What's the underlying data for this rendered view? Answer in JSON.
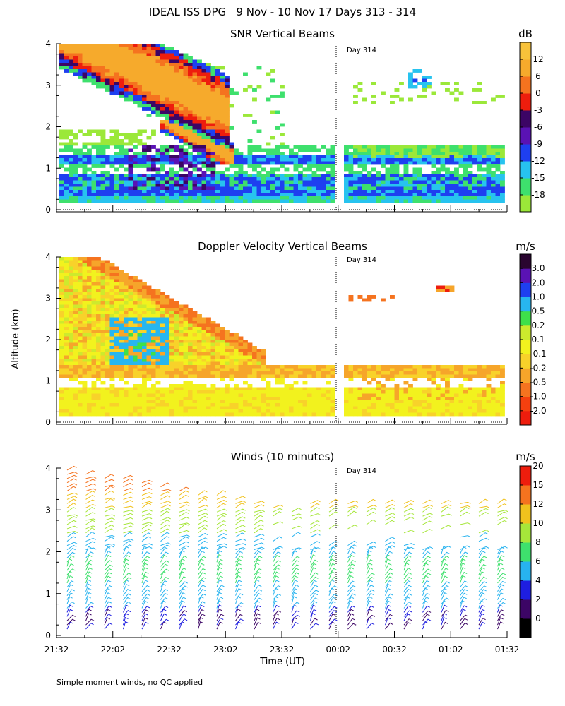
{
  "figure": {
    "title": "IDEAL ISS DPG   9 Nov - 10 Nov 17 Days 313 - 314",
    "ylabel": "Altitude (km)",
    "xlabel": "Time (UT)",
    "footnote": "Simple moment winds, no QC applied",
    "day_marker": "Day 314"
  },
  "chart_data": [
    {
      "type": "heatmap",
      "title": "SNR Vertical Beams",
      "colorbar_unit": "dB",
      "colorbar_ticks": [
        "-18",
        "-15",
        "-12",
        "-9",
        "-6",
        "-3",
        "0",
        "6",
        "12"
      ],
      "colors": [
        "#9be839",
        "#3ee06d",
        "#27c3ef",
        "#1e3ff0",
        "#5a12b4",
        "#3c0565",
        "#ee1d0d",
        "#f5731f",
        "#f6aa2c",
        "#f8c23a"
      ],
      "yticks": [
        "0",
        "1",
        "2",
        "3",
        "4"
      ],
      "ylim": [
        0,
        4
      ],
      "xticks": [
        "21:32",
        "22:02",
        "22:32",
        "23:02",
        "23:32",
        "00:02",
        "00:32",
        "01:02",
        "01:32"
      ],
      "day_marker_time": "00:00"
    },
    {
      "type": "heatmap",
      "title": "Doppler Velocity Vertical Beams",
      "colorbar_unit": "m/s",
      "colorbar_ticks": [
        "-2.0",
        "-1.0",
        "-0.5",
        "-0.2",
        "-0.1",
        "0.1",
        "0.2",
        "0.5",
        "1.0",
        "2.0",
        "3.0"
      ],
      "colors": [
        "#ee1d0d",
        "#f5400f",
        "#f5731f",
        "#f6a52a",
        "#f8d22a",
        "#f2f21e",
        "#cdea2d",
        "#3ee04a",
        "#27b6ef",
        "#1e3ff0",
        "#5a12b4",
        "#2a0530"
      ],
      "yticks": [
        "0",
        "1",
        "2",
        "3",
        "4"
      ],
      "ylim": [
        0,
        4
      ]
    },
    {
      "type": "scatter",
      "title": "Winds (10 minutes)",
      "colorbar_unit": "m/s",
      "colorbar_ticks": [
        "0",
        "2",
        "4",
        "6",
        "8",
        "10",
        "12",
        "15",
        "20"
      ],
      "colors": [
        "#000000",
        "#3c0565",
        "#1e1ee0",
        "#27b3ef",
        "#3ee06d",
        "#a6e63a",
        "#f0c21d",
        "#f5731f",
        "#ee1d0d"
      ],
      "yticks": [
        "0",
        "1",
        "2",
        "3",
        "4"
      ],
      "ylim": [
        0,
        4
      ],
      "xticks": [
        "21:32",
        "22:02",
        "22:32",
        "23:02",
        "23:32",
        "00:02",
        "00:32",
        "01:02",
        "01:32"
      ]
    }
  ]
}
